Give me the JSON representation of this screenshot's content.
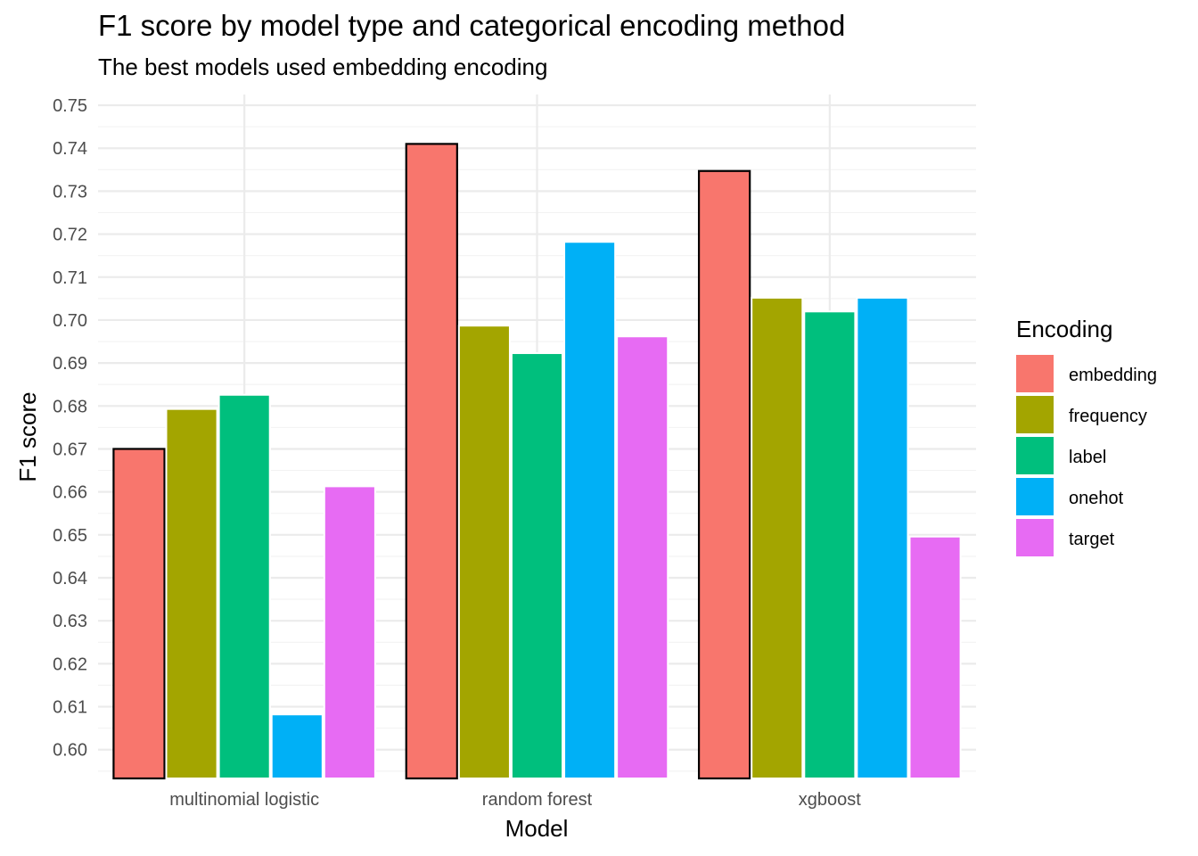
{
  "chart_data": {
    "type": "bar",
    "title": "F1 score by model type and categorical encoding method",
    "subtitle": "The best models used embedding encoding",
    "xlabel": "Model",
    "ylabel": "F1 score",
    "categories": [
      "multinomial logistic",
      "random forest",
      "xgboost"
    ],
    "ylim": [
      0.5933,
      0.7525
    ],
    "yticks": [
      "0.60",
      "0.61",
      "0.62",
      "0.63",
      "0.64",
      "0.65",
      "0.66",
      "0.67",
      "0.68",
      "0.69",
      "0.70",
      "0.71",
      "0.72",
      "0.73",
      "0.74",
      "0.75"
    ],
    "grid": true,
    "legend": {
      "title": "Encoding",
      "position": "right"
    },
    "highlight_series": "embedding",
    "series": [
      {
        "name": "embedding",
        "color": "#F8766D",
        "values": [
          0.67,
          0.741,
          0.7347
        ]
      },
      {
        "name": "frequency",
        "color": "#A3A500",
        "values": [
          0.6793,
          0.6987,
          0.7052
        ]
      },
      {
        "name": "label",
        "color": "#00BF7D",
        "values": [
          0.6826,
          0.6923,
          0.702
        ]
      },
      {
        "name": "onehot",
        "color": "#00B0F6",
        "values": [
          0.6082,
          0.7182,
          0.7052
        ]
      },
      {
        "name": "target",
        "color": "#E76BF3",
        "values": [
          0.6613,
          0.6962,
          0.6496
        ]
      }
    ]
  }
}
